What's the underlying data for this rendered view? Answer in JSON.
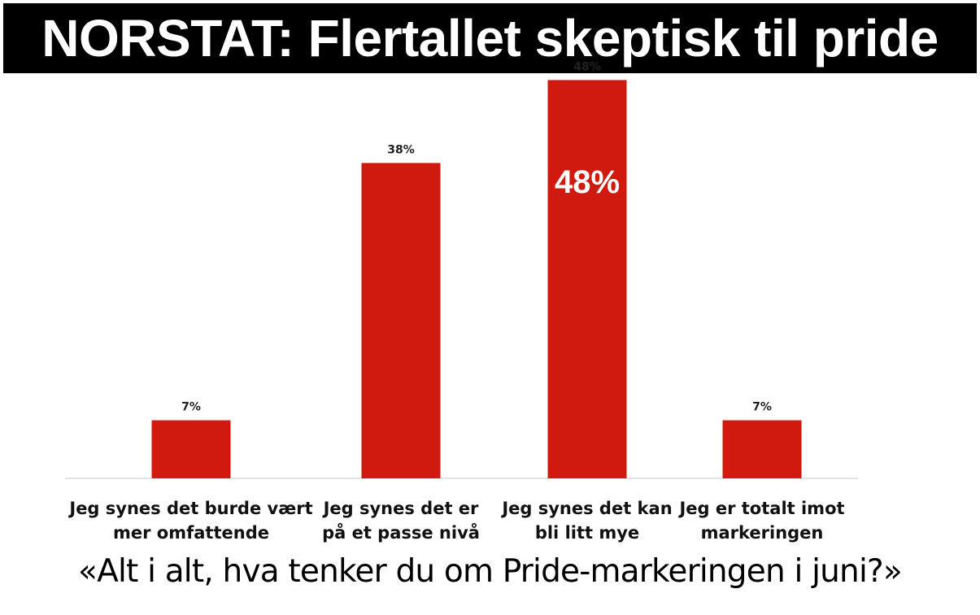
{
  "headline": "NORSTAT: Flertallet skeptisk til pride",
  "question": "«Alt i alt, hva tenker du om Pride-markeringen i juni?»",
  "highlight_label": "48%",
  "colors": {
    "bar": "#d01a10",
    "headline_bg": "#000000",
    "baseline": "#d9d9d9"
  },
  "chart_data": {
    "type": "bar",
    "categories": [
      [
        "Jeg synes det burde vært",
        "mer omfattende"
      ],
      [
        "Jeg synes det er",
        "på et passe nivå"
      ],
      [
        "Jeg synes det kan",
        "bli litt mye"
      ],
      [
        "Jeg er totalt imot",
        "markeringen"
      ]
    ],
    "values": [
      7,
      38,
      48,
      7
    ],
    "data_labels": [
      "7%",
      "38%",
      "48%",
      "7%"
    ],
    "ylim": [
      0,
      50
    ],
    "grid": false,
    "title": "",
    "xlabel": "",
    "ylabel": ""
  }
}
